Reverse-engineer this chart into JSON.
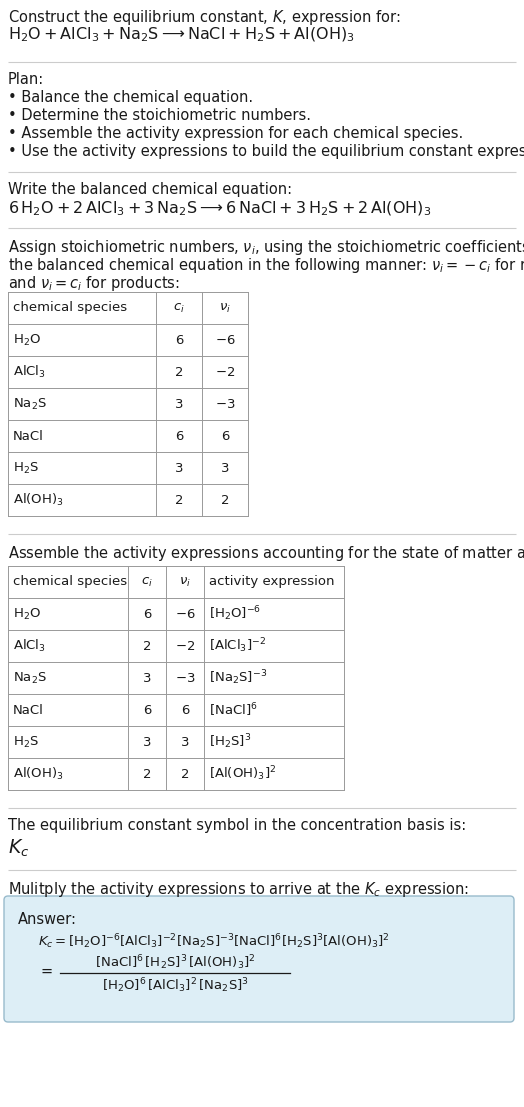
{
  "bg_color": "#ffffff",
  "text_color": "#1a1a1a",
  "title_line1": "Construct the equilibrium constant, $K$, expression for:",
  "reaction_unbalanced": "$\\mathrm{H_2O + AlCl_3 + Na_2S \\longrightarrow NaCl + H_2S + Al(OH)_3}$",
  "plan_header": "Plan:",
  "plan_bullets": [
    "\\bullet  Balance the chemical equation.",
    "\\bullet  Determine the stoichiometric numbers.",
    "\\bullet  Assemble the activity expression for each chemical species.",
    "\\bullet  Use the activity expressions to build the equilibrium constant expression."
  ],
  "balanced_header": "Write the balanced chemical equation:",
  "reaction_balanced": "$\\mathrm{6\\,H_2O + 2\\,AlCl_3 + 3\\,Na_2S \\longrightarrow 6\\,NaCl + 3\\,H_2S + 2\\,Al(OH)_3}$",
  "stoich_intro_parts": [
    "Assign stoichiometric numbers, $\\nu_i$, using the stoichiometric coefficients, $c_i$, from",
    "the balanced chemical equation in the following manner: $\\nu_i = -c_i$ for reactants",
    "and $\\nu_i = c_i$ for products:"
  ],
  "table1_headers": [
    "chemical species",
    "$c_i$",
    "$\\nu_i$"
  ],
  "table1_rows": [
    [
      "$\\mathrm{H_2O}$",
      "6",
      "$-6$"
    ],
    [
      "$\\mathrm{AlCl_3}$",
      "2",
      "$-2$"
    ],
    [
      "$\\mathrm{Na_2S}$",
      "3",
      "$-3$"
    ],
    [
      "NaCl",
      "6",
      "6"
    ],
    [
      "$\\mathrm{H_2S}$",
      "3",
      "3"
    ],
    [
      "$\\mathrm{Al(OH)_3}$",
      "2",
      "2"
    ]
  ],
  "activity_intro": "Assemble the activity expressions accounting for the state of matter and $\\nu_i$:",
  "table2_headers": [
    "chemical species",
    "$c_i$",
    "$\\nu_i$",
    "activity expression"
  ],
  "table2_rows": [
    [
      "$\\mathrm{H_2O}$",
      "6",
      "$-6$",
      "$[\\mathrm{H_2O}]^{-6}$"
    ],
    [
      "$\\mathrm{AlCl_3}$",
      "2",
      "$-2$",
      "$[\\mathrm{AlCl_3}]^{-2}$"
    ],
    [
      "$\\mathrm{Na_2S}$",
      "3",
      "$-3$",
      "$[\\mathrm{Na_2S}]^{-3}$"
    ],
    [
      "NaCl",
      "6",
      "6",
      "$[\\mathrm{NaCl}]^6$"
    ],
    [
      "$\\mathrm{H_2S}$",
      "3",
      "3",
      "$[\\mathrm{H_2S}]^3$"
    ],
    [
      "$\\mathrm{Al(OH)_3}$",
      "2",
      "2",
      "$[\\mathrm{Al(OH)_3}]^2$"
    ]
  ],
  "kc_intro": "The equilibrium constant symbol in the concentration basis is:",
  "kc_symbol": "$K_c$",
  "multiply_intro": "Mulitply the activity expressions to arrive at the $K_c$ expression:",
  "answer_label": "Answer:",
  "answer_box_color": "#ddeef6",
  "answer_box_border": "#99bbcc",
  "table_border_color": "#999999",
  "sep_color": "#cccccc",
  "fs": 10.5,
  "fs_small": 9.5
}
